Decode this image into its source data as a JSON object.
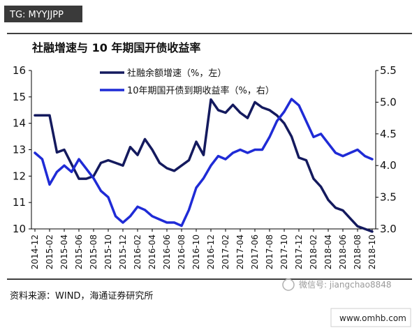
{
  "watermark_top": "TG: MYYJJPP",
  "watermark_bottom": "www.omhb.com",
  "wechat_watermark": "微信号: jiangchao8848",
  "source_note": "资料来源：WIND，海通证券研究所",
  "colors": {
    "series1": "#141a5e",
    "series2": "#1f2bd6",
    "axis": "#000000",
    "watermark_bg": "#3a3a3a"
  },
  "chart_data": {
    "type": "line",
    "title": "社融增速与 10 年期国开债收益率",
    "x_tick_labels": [
      "2014-12",
      "2015-02",
      "2015-04",
      "2015-06",
      "2015-08",
      "2015-10",
      "2015-12",
      "2016-02",
      "2016-04",
      "2016-06",
      "2016-08",
      "2016-10",
      "2016-12",
      "2017-02",
      "2017-04",
      "2017-06",
      "2017-08",
      "2017-10",
      "2017-12",
      "2018-02",
      "2018-04",
      "2018-06",
      "2018-08",
      "2018-10"
    ],
    "y_left": {
      "ticks": [
        "10",
        "11",
        "12",
        "13",
        "14",
        "15",
        "16"
      ],
      "ylim": [
        10,
        16
      ]
    },
    "y_right": {
      "ticks": [
        "3.0",
        "3.5",
        "4.0",
        "4.5",
        "5.0",
        "5.5"
      ],
      "ylim": [
        3.0,
        5.5
      ]
    },
    "legend_position": "top-center",
    "grid": false,
    "series": [
      {
        "name": "社融余额增速（%，左）",
        "axis": "left",
        "x": [
          0,
          0.5,
          1,
          1.5,
          2,
          3,
          3.5,
          4,
          4.5,
          5,
          5.5,
          6,
          6.5,
          7,
          7.5,
          8,
          8.5,
          9,
          9.5,
          10,
          10.5,
          11,
          11.5,
          12,
          12.5,
          13,
          13.5,
          14,
          14.5,
          15,
          15.5,
          16,
          16.5,
          17,
          17.5,
          18,
          18.5,
          19,
          19.5,
          20,
          20.5,
          21,
          21.5,
          22,
          22.5,
          23
        ],
        "values": [
          14.3,
          14.3,
          14.3,
          12.9,
          13.0,
          11.9,
          11.9,
          12.0,
          12.5,
          12.6,
          12.5,
          12.4,
          13.1,
          12.8,
          13.4,
          13.0,
          12.5,
          12.3,
          12.2,
          12.4,
          12.6,
          13.3,
          12.8,
          14.9,
          14.5,
          14.4,
          14.7,
          14.4,
          14.2,
          14.8,
          14.6,
          14.5,
          14.3,
          14.0,
          13.5,
          12.7,
          12.6,
          11.9,
          11.6,
          11.1,
          10.8,
          10.7,
          10.4,
          10.1,
          10.0,
          9.9
        ],
        "color": "#141a5e"
      },
      {
        "name": "10年期国开债到期收益率（%，右）",
        "axis": "right",
        "x": [
          0,
          0.5,
          1,
          1.5,
          2,
          2.5,
          3,
          3.5,
          4,
          4.5,
          5,
          5.5,
          6,
          6.5,
          7,
          7.5,
          8,
          8.5,
          9,
          9.5,
          10,
          10.5,
          11,
          11.5,
          12,
          12.5,
          13,
          13.5,
          14,
          14.5,
          15,
          15.5,
          16,
          16.5,
          17,
          17.5,
          18,
          18.5,
          19,
          19.5,
          20,
          20.5,
          21,
          21.5,
          22,
          22.5,
          23
        ],
        "values": [
          4.2,
          4.1,
          3.7,
          3.9,
          4.0,
          3.9,
          4.1,
          3.95,
          3.8,
          3.6,
          3.5,
          3.2,
          3.1,
          3.2,
          3.35,
          3.3,
          3.2,
          3.15,
          3.1,
          3.1,
          3.05,
          3.3,
          3.65,
          3.8,
          4.0,
          4.15,
          4.1,
          4.2,
          4.25,
          4.2,
          4.25,
          4.25,
          4.45,
          4.7,
          4.85,
          5.05,
          4.95,
          4.7,
          4.45,
          4.5,
          4.35,
          4.2,
          4.15,
          4.2,
          4.25,
          4.15,
          4.1
        ],
        "color": "#1f2bd6"
      }
    ]
  }
}
